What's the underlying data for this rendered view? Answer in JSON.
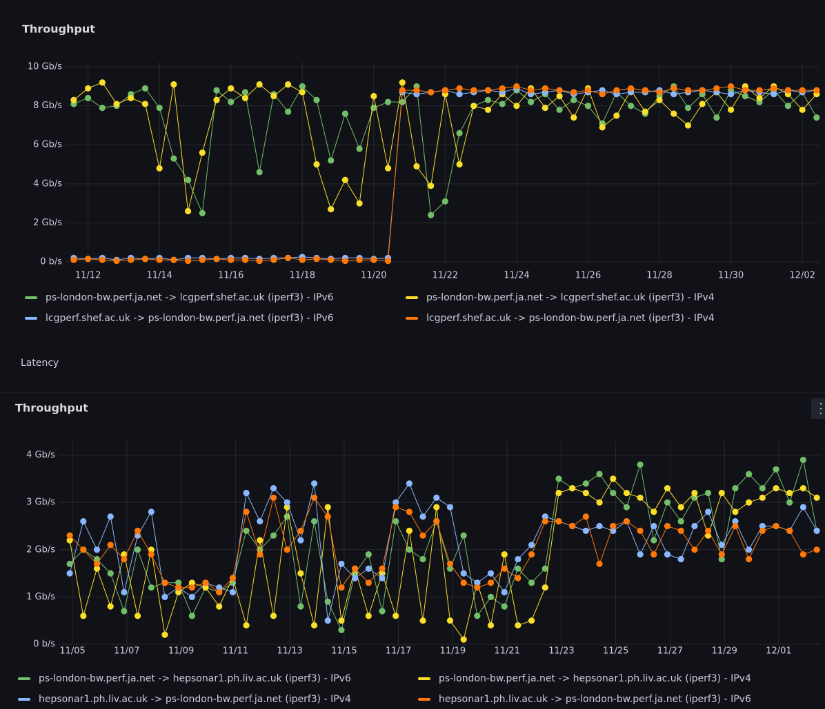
{
  "row_title": "Latency",
  "chart_data": [
    {
      "type": "line",
      "title": "Throughput",
      "points": true,
      "grid": true,
      "legend": "bottom",
      "x": [
        11.6,
        12.0,
        12.4,
        12.8,
        13.2,
        13.6,
        14.0,
        14.4,
        14.8,
        15.2,
        15.6,
        16.0,
        16.4,
        16.8,
        17.2,
        17.6,
        18.0,
        18.4,
        18.8,
        19.2,
        19.6,
        20.0,
        20.4,
        20.8,
        21.2,
        21.6,
        22.0,
        22.4,
        22.8,
        23.2,
        23.6,
        24.0,
        24.4,
        24.8,
        25.2,
        25.6,
        26.0,
        26.4,
        26.8,
        27.2,
        27.6,
        28.0,
        28.4,
        28.8,
        29.2,
        29.6,
        30.0,
        30.4,
        30.8,
        31.2,
        31.6,
        32.0,
        32.4
      ],
      "xlim": [
        11.37,
        32.48
      ],
      "xticks": [
        {
          "value": 12,
          "label": "11/12"
        },
        {
          "value": 14,
          "label": "11/14"
        },
        {
          "value": 16,
          "label": "11/16"
        },
        {
          "value": 18,
          "label": "11/18"
        },
        {
          "value": 20,
          "label": "11/20"
        },
        {
          "value": 22,
          "label": "11/22"
        },
        {
          "value": 24,
          "label": "11/24"
        },
        {
          "value": 26,
          "label": "11/26"
        },
        {
          "value": 28,
          "label": "11/28"
        },
        {
          "value": 30,
          "label": "11/30"
        },
        {
          "value": 32,
          "label": "12/02"
        }
      ],
      "ylim": [
        0,
        10.25
      ],
      "yticks": [
        {
          "value": 0,
          "label": "0 b/s"
        },
        {
          "value": 2,
          "label": "2 Gb/s"
        },
        {
          "value": 4,
          "label": "4 Gb/s"
        },
        {
          "value": 6,
          "label": "6 Gb/s"
        },
        {
          "value": 8,
          "label": "8 Gb/s"
        },
        {
          "value": 10,
          "label": "10 Gb/s"
        }
      ],
      "series": [
        {
          "name": "ps-london-bw.perf.ja.net -> lcgperf.shef.ac.uk (iperf3) - IPv6",
          "color": "#73bf69",
          "values": [
            8.1,
            8.4,
            7.9,
            8.0,
            8.6,
            8.9,
            7.9,
            5.3,
            4.2,
            2.5,
            8.8,
            8.2,
            8.7,
            4.6,
            8.6,
            7.7,
            9.0,
            8.3,
            5.2,
            7.6,
            5.8,
            7.9,
            8.2,
            8.2,
            9.0,
            2.4,
            3.1,
            6.6,
            8.0,
            8.3,
            8.1,
            8.8,
            8.2,
            8.6,
            7.8,
            8.3,
            8.0,
            7.1,
            8.7,
            8.0,
            7.6,
            8.5,
            9.0,
            7.9,
            8.6,
            7.4,
            8.8,
            8.5,
            8.2,
            8.8,
            8.0,
            8.7,
            7.4
          ]
        },
        {
          "name": "ps-london-bw.perf.ja.net -> lcgperf.shef.ac.uk (iperf3) - IPv4",
          "color": "#fade2a",
          "values": [
            8.3,
            8.9,
            9.2,
            8.1,
            8.4,
            8.1,
            4.8,
            9.1,
            2.6,
            5.6,
            8.3,
            8.9,
            8.4,
            9.1,
            8.5,
            9.1,
            8.7,
            5.0,
            2.7,
            4.2,
            3.0,
            8.5,
            4.8,
            9.2,
            4.9,
            3.9,
            8.6,
            5.0,
            8.0,
            7.8,
            8.6,
            8.0,
            8.9,
            7.9,
            8.5,
            7.4,
            8.9,
            6.9,
            7.5,
            8.8,
            7.7,
            8.3,
            7.6,
            7.0,
            8.1,
            8.7,
            7.8,
            9.0,
            8.4,
            9.0,
            8.6,
            7.8,
            8.6
          ]
        },
        {
          "name": "lcgperf.shef.ac.uk -> ps-london-bw.perf.ja.net (iperf3) - IPv6",
          "color": "#8ab8ff",
          "values": [
            0.2,
            0.15,
            0.2,
            0.1,
            0.2,
            0.15,
            0.2,
            0.1,
            0.2,
            0.2,
            0.15,
            0.2,
            0.2,
            0.15,
            0.2,
            0.2,
            0.25,
            0.2,
            0.15,
            0.2,
            0.2,
            0.15,
            0.2,
            8.7,
            8.6,
            8.7,
            8.8,
            8.6,
            8.7,
            8.8,
            8.7,
            8.9,
            8.6,
            8.7,
            8.8,
            8.6,
            8.7,
            8.8,
            8.6,
            8.7,
            8.7,
            8.8,
            8.6,
            8.7,
            8.8,
            8.7,
            8.6,
            8.8,
            8.7,
            8.6,
            8.8,
            8.7,
            8.8
          ]
        },
        {
          "name": "lcgperf.shef.ac.uk -> ps-london-bw.perf.ja.net (iperf3) - IPv4",
          "color": "#ff780a",
          "values": [
            0.1,
            0.15,
            0.1,
            0.05,
            0.1,
            0.15,
            0.1,
            0.1,
            0.05,
            0.1,
            0.15,
            0.1,
            0.1,
            0.05,
            0.1,
            0.2,
            0.1,
            0.15,
            0.1,
            0.05,
            0.1,
            0.1,
            0.05,
            8.8,
            8.8,
            8.7,
            8.8,
            8.9,
            8.8,
            8.8,
            8.9,
            9.0,
            8.8,
            8.9,
            8.8,
            8.7,
            8.8,
            8.6,
            8.8,
            8.9,
            8.8,
            8.7,
            8.9,
            8.8,
            8.8,
            8.9,
            9.0,
            8.8,
            8.8,
            8.9,
            8.8,
            8.8,
            8.8
          ]
        }
      ]
    },
    {
      "type": "line",
      "title": "Throughput",
      "points": true,
      "grid": true,
      "legend": "bottom",
      "x": [
        4.9,
        5.4,
        5.9,
        6.4,
        6.9,
        7.4,
        7.9,
        8.4,
        8.9,
        9.4,
        9.9,
        10.4,
        10.9,
        11.4,
        11.9,
        12.4,
        12.9,
        13.4,
        13.9,
        14.4,
        14.9,
        15.4,
        15.9,
        16.4,
        16.9,
        17.4,
        17.9,
        18.4,
        18.9,
        19.4,
        19.9,
        20.4,
        20.9,
        21.4,
        21.9,
        22.4,
        22.9,
        23.4,
        23.9,
        24.4,
        24.9,
        25.4,
        25.9,
        26.4,
        26.9,
        27.4,
        27.9,
        28.4,
        28.9,
        29.4,
        29.9,
        30.4,
        30.9,
        31.4,
        31.9,
        32.4
      ],
      "xlim": [
        4.49,
        32.55
      ],
      "xticks": [
        {
          "value": 5,
          "label": "11/05"
        },
        {
          "value": 7,
          "label": "11/07"
        },
        {
          "value": 9,
          "label": "11/09"
        },
        {
          "value": 11,
          "label": "11/11"
        },
        {
          "value": 13,
          "label": "11/13"
        },
        {
          "value": 15,
          "label": "11/15"
        },
        {
          "value": 17,
          "label": "11/17"
        },
        {
          "value": 19,
          "label": "11/19"
        },
        {
          "value": 21,
          "label": "11/21"
        },
        {
          "value": 23,
          "label": "11/23"
        },
        {
          "value": 25,
          "label": "11/25"
        },
        {
          "value": 27,
          "label": "11/27"
        },
        {
          "value": 29,
          "label": "11/29"
        },
        {
          "value": 31,
          "label": "12/01"
        }
      ],
      "ylim": [
        0,
        4.3
      ],
      "yticks": [
        {
          "value": 0,
          "label": "0 b/s"
        },
        {
          "value": 1,
          "label": "1 Gb/s"
        },
        {
          "value": 2,
          "label": "2 Gb/s"
        },
        {
          "value": 3,
          "label": "3 Gb/s"
        },
        {
          "value": 4,
          "label": "4 Gb/s"
        }
      ],
      "series": [
        {
          "name": "ps-london-bw.perf.ja.net -> hepsonar1.ph.liv.ac.uk (iperf3) - IPv6",
          "color": "#73bf69",
          "values": [
            1.7,
            2.0,
            1.8,
            1.5,
            0.7,
            2.0,
            1.2,
            1.3,
            1.3,
            0.6,
            1.2,
            1.1,
            1.3,
            2.4,
            2.0,
            2.3,
            2.7,
            0.8,
            2.6,
            0.9,
            0.3,
            1.5,
            1.9,
            0.7,
            2.6,
            2.0,
            1.8,
            2.6,
            1.6,
            2.3,
            0.6,
            1.0,
            0.8,
            1.6,
            1.3,
            1.6,
            3.5,
            3.3,
            3.4,
            3.6,
            3.2,
            2.9,
            3.8,
            2.2,
            3.0,
            2.6,
            3.1,
            3.2,
            1.8,
            3.3,
            3.6,
            3.3,
            3.7,
            3.0,
            3.9,
            2.4
          ]
        },
        {
          "name": "ps-london-bw.perf.ja.net -> hepsonar1.ph.liv.ac.uk (iperf3) - IPv4",
          "color": "#fade2a",
          "values": [
            2.2,
            0.6,
            1.6,
            0.8,
            1.9,
            0.6,
            2.0,
            0.2,
            1.1,
            1.3,
            1.2,
            0.8,
            1.4,
            0.4,
            2.2,
            0.6,
            2.9,
            1.5,
            0.4,
            2.9,
            0.5,
            1.6,
            0.6,
            1.5,
            0.6,
            2.4,
            0.5,
            2.9,
            0.5,
            0.1,
            1.3,
            0.4,
            1.9,
            0.4,
            0.5,
            1.2,
            3.2,
            3.3,
            3.2,
            3.0,
            3.5,
            3.2,
            3.1,
            2.8,
            3.3,
            2.9,
            3.2,
            2.3,
            3.2,
            2.8,
            3.0,
            3.1,
            3.3,
            3.2,
            3.3,
            3.1
          ]
        },
        {
          "name": "hepsonar1.ph.liv.ac.uk -> ps-london-bw.perf.ja.net (iperf3) - IPv4",
          "color": "#8ab8ff",
          "values": [
            1.5,
            2.6,
            2.0,
            2.7,
            1.1,
            2.3,
            2.8,
            1.0,
            1.2,
            1.0,
            1.3,
            1.2,
            1.1,
            3.2,
            2.6,
            3.3,
            3.0,
            2.2,
            3.4,
            0.5,
            1.7,
            1.4,
            1.6,
            1.4,
            3.0,
            3.4,
            2.7,
            3.1,
            2.9,
            1.5,
            1.3,
            1.5,
            1.1,
            1.8,
            2.1,
            2.7,
            2.6,
            2.5,
            2.4,
            2.5,
            2.4,
            2.6,
            1.9,
            2.5,
            1.9,
            1.8,
            2.5,
            2.8,
            2.1,
            2.6,
            2.0,
            2.5,
            2.5,
            2.4,
            2.9,
            2.4
          ]
        },
        {
          "name": "hepsonar1.ph.liv.ac.uk -> ps-london-bw.perf.ja.net (iperf3) - IPv6",
          "color": "#ff780a",
          "values": [
            2.3,
            2.0,
            1.7,
            2.1,
            1.8,
            2.4,
            1.9,
            1.3,
            1.2,
            1.2,
            1.3,
            1.1,
            1.4,
            2.8,
            1.9,
            3.1,
            2.0,
            2.4,
            3.1,
            2.7,
            1.2,
            1.6,
            1.3,
            1.6,
            2.9,
            2.8,
            2.3,
            2.6,
            1.7,
            1.3,
            1.2,
            1.3,
            1.6,
            1.4,
            1.9,
            2.6,
            2.6,
            2.5,
            2.7,
            1.7,
            2.5,
            2.6,
            2.4,
            1.9,
            2.5,
            2.4,
            2.0,
            2.4,
            1.9,
            2.5,
            1.8,
            2.4,
            2.5,
            2.4,
            1.9,
            2.0
          ]
        }
      ]
    }
  ]
}
